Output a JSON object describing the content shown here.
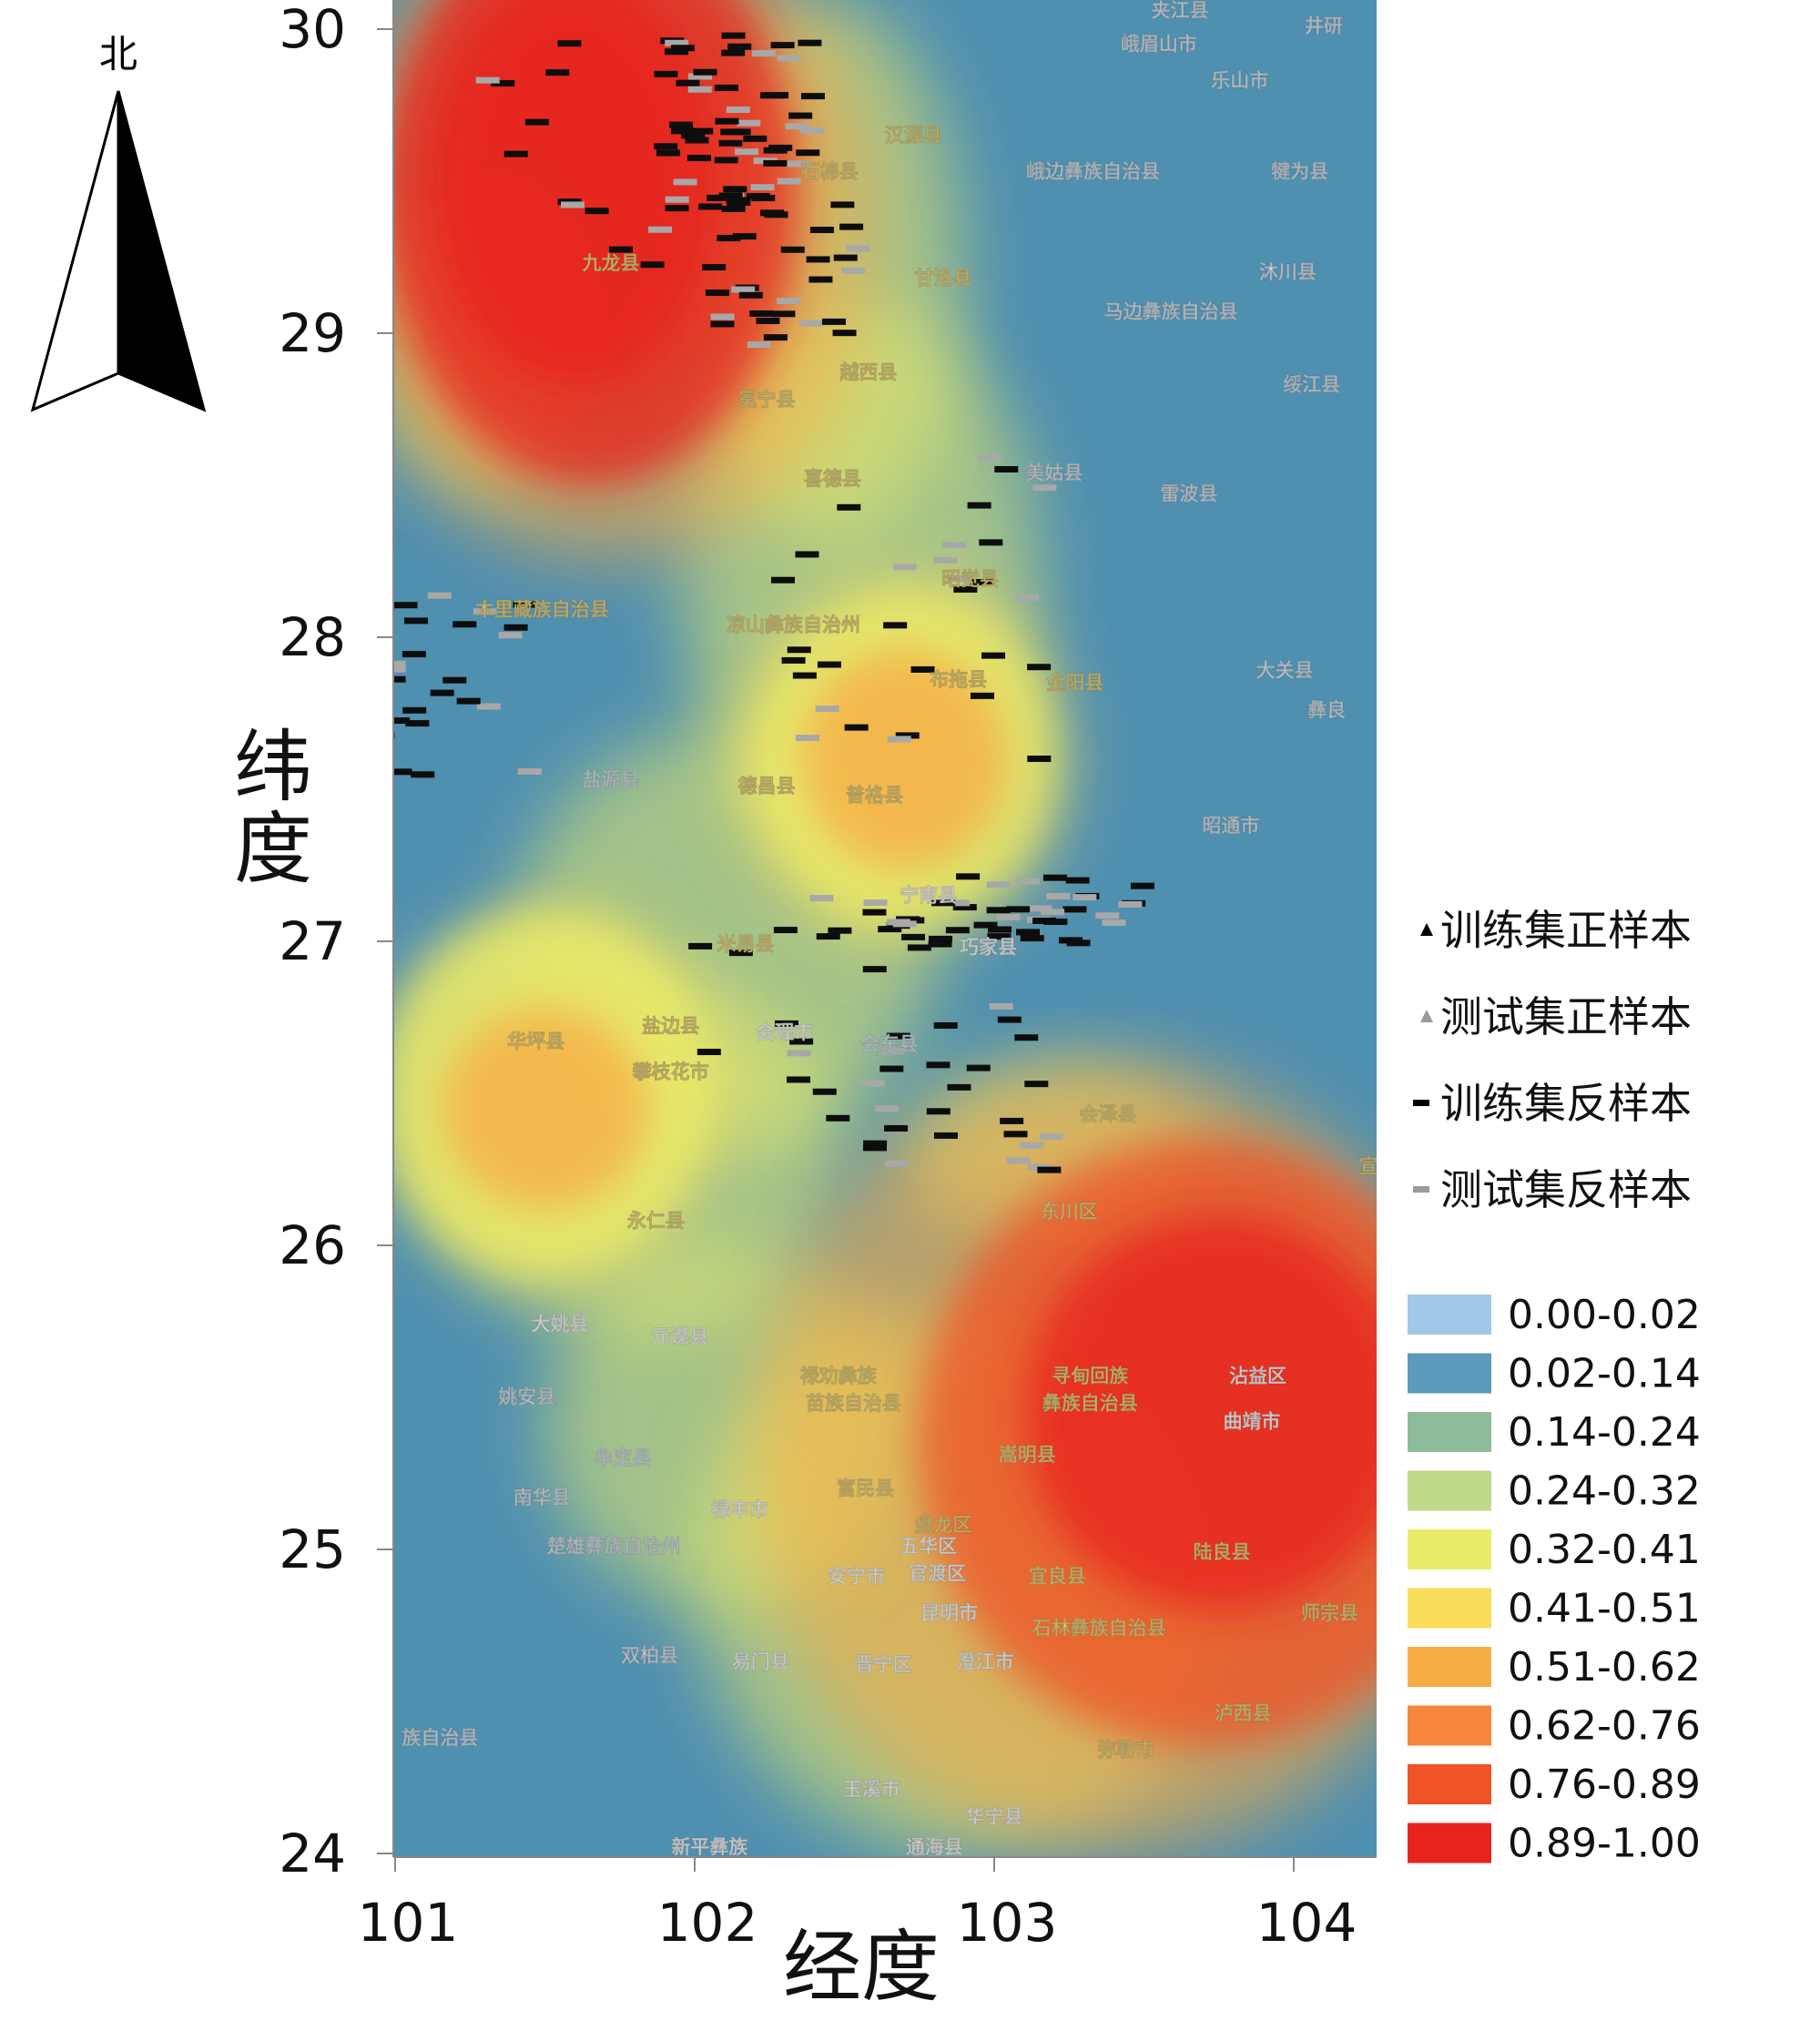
{
  "north_arrow": {
    "label": "北"
  },
  "axes": {
    "xlabel": "经度",
    "ylabel_line1": "纬",
    "ylabel_line2": "度",
    "x_ticks": [
      101,
      102,
      103,
      104
    ],
    "y_ticks": [
      24,
      25,
      26,
      27,
      28,
      29,
      30
    ],
    "xlim": [
      101,
      104.3
    ],
    "ylim": [
      24,
      30.1
    ]
  },
  "legend": {
    "markers": [
      {
        "label": "训练集正样本",
        "symbol": "triangle",
        "color": "#000000"
      },
      {
        "label": "测试集正样本",
        "symbol": "triangle",
        "color": "#9a9a9a"
      },
      {
        "label": "训练集反样本",
        "symbol": "dash",
        "color": "#000000"
      },
      {
        "label": "测试集反样本",
        "symbol": "dash",
        "color": "#9a9a9a"
      }
    ],
    "classes": [
      {
        "label": "0.00-0.02",
        "color": "#9fc9e6"
      },
      {
        "label": "0.02-0.14",
        "color": "#5b9ab8"
      },
      {
        "label": "0.14-0.24",
        "color": "#8cbc9a"
      },
      {
        "label": "0.24-0.32",
        "color": "#bfd98a"
      },
      {
        "label": "0.32-0.41",
        "color": "#e8ec6a"
      },
      {
        "label": "0.41-0.51",
        "color": "#f9dc5a"
      },
      {
        "label": "0.51-0.62",
        "color": "#f8ac45"
      },
      {
        "label": "0.62-0.76",
        "color": "#f5863a"
      },
      {
        "label": "0.76-0.89",
        "color": "#ef5326"
      },
      {
        "label": "0.89-1.00",
        "color": "#e8231d"
      }
    ]
  },
  "susceptibility_zones": [
    {
      "lon": 101.65,
      "lat": 29.45,
      "rlon": 0.7,
      "rlat": 0.95,
      "class": 9
    },
    {
      "lon": 101.6,
      "lat": 29.5,
      "rlon": 0.48,
      "rlat": 0.68,
      "class": 9
    },
    {
      "lon": 103.7,
      "lat": 25.35,
      "rlon": 0.95,
      "rlat": 1.0,
      "class": 8
    },
    {
      "lon": 103.75,
      "lat": 25.45,
      "rlon": 0.65,
      "rlat": 0.65,
      "class": 9
    },
    {
      "lon": 102.7,
      "lat": 27.6,
      "rlon": 0.5,
      "rlat": 0.55,
      "class": 4
    },
    {
      "lon": 102.7,
      "lat": 27.6,
      "rlon": 0.34,
      "rlat": 0.36,
      "class": 6
    },
    {
      "lon": 101.5,
      "lat": 26.5,
      "rlon": 0.55,
      "rlat": 0.6,
      "class": 4
    },
    {
      "lon": 101.5,
      "lat": 26.45,
      "rlon": 0.34,
      "rlat": 0.33,
      "class": 6
    }
  ],
  "place_labels": [
    {
      "name": "夹江县",
      "lon": 103.62,
      "lat": 30.04,
      "kind": "city"
    },
    {
      "name": "峨眉山市",
      "lon": 103.55,
      "lat": 29.93,
      "kind": "city"
    },
    {
      "name": "乐山市",
      "lon": 103.82,
      "lat": 29.81,
      "kind": "city"
    },
    {
      "name": "井研",
      "lon": 104.1,
      "lat": 29.99,
      "kind": "city"
    },
    {
      "name": "汉源县",
      "lon": 102.73,
      "lat": 29.63,
      "kind": "county"
    },
    {
      "name": "石棉县",
      "lon": 102.45,
      "lat": 29.51,
      "kind": "county"
    },
    {
      "name": "峨边彝族自治县",
      "lon": 103.33,
      "lat": 29.51,
      "kind": "city"
    },
    {
      "name": "犍为县",
      "lon": 104.02,
      "lat": 29.51,
      "kind": "city"
    },
    {
      "name": "九龙县",
      "lon": 101.72,
      "lat": 29.21,
      "kind": "county"
    },
    {
      "name": "甘洛县",
      "lon": 102.83,
      "lat": 29.16,
      "kind": "county"
    },
    {
      "name": "沐川县",
      "lon": 103.98,
      "lat": 29.18,
      "kind": "city"
    },
    {
      "name": "马边彝族自治县",
      "lon": 103.59,
      "lat": 29.05,
      "kind": "city"
    },
    {
      "name": "越西县",
      "lon": 102.58,
      "lat": 28.85,
      "kind": "county"
    },
    {
      "name": "冕宁县",
      "lon": 102.24,
      "lat": 28.76,
      "kind": "county"
    },
    {
      "name": "绥江县",
      "lon": 104.06,
      "lat": 28.81,
      "kind": "city"
    },
    {
      "name": "喜德县",
      "lon": 102.46,
      "lat": 28.5,
      "kind": "county"
    },
    {
      "name": "美姑县",
      "lon": 103.2,
      "lat": 28.52,
      "kind": "city"
    },
    {
      "name": "雷波县",
      "lon": 103.65,
      "lat": 28.45,
      "kind": "city"
    },
    {
      "name": "昭觉县",
      "lon": 102.92,
      "lat": 28.17,
      "kind": "county"
    },
    {
      "name": "木里藏族自治县",
      "lon": 101.49,
      "lat": 28.07,
      "kind": "county"
    },
    {
      "name": "凉山彝族自治州",
      "lon": 102.33,
      "lat": 28.02,
      "kind": "county"
    },
    {
      "name": "布拖县",
      "lon": 102.88,
      "lat": 27.84,
      "kind": "county"
    },
    {
      "name": "金阳县",
      "lon": 103.27,
      "lat": 27.83,
      "kind": "county"
    },
    {
      "name": "大关县",
      "lon": 103.97,
      "lat": 27.87,
      "kind": "city"
    },
    {
      "name": "彝良",
      "lon": 104.11,
      "lat": 27.74,
      "kind": "city"
    },
    {
      "name": "盐源县",
      "lon": 101.72,
      "lat": 27.51,
      "kind": "city"
    },
    {
      "name": "德昌县",
      "lon": 102.24,
      "lat": 27.49,
      "kind": "county"
    },
    {
      "name": "普格县",
      "lon": 102.6,
      "lat": 27.46,
      "kind": "county"
    },
    {
      "name": "昭通市",
      "lon": 103.79,
      "lat": 27.36,
      "kind": "city"
    },
    {
      "name": "宁南县",
      "lon": 102.78,
      "lat": 27.13,
      "kind": "white"
    },
    {
      "name": "米易县",
      "lon": 102.17,
      "lat": 26.97,
      "kind": "county"
    },
    {
      "name": "巧家县",
      "lon": 102.98,
      "lat": 26.96,
      "kind": "white"
    },
    {
      "name": "华坪县",
      "lon": 101.47,
      "lat": 26.65,
      "kind": "county"
    },
    {
      "name": "盐边县",
      "lon": 101.92,
      "lat": 26.7,
      "kind": "county"
    },
    {
      "name": "会理市",
      "lon": 102.3,
      "lat": 26.68,
      "kind": "white"
    },
    {
      "name": "攀枝花市",
      "lon": 101.92,
      "lat": 26.55,
      "kind": "county"
    },
    {
      "name": "会东县",
      "lon": 102.65,
      "lat": 26.64,
      "kind": "city"
    },
    {
      "name": "会泽县",
      "lon": 103.38,
      "lat": 26.41,
      "kind": "county"
    },
    {
      "name": "永仁县",
      "lon": 101.87,
      "lat": 26.06,
      "kind": "county"
    },
    {
      "name": "东川区",
      "lon": 103.25,
      "lat": 26.09,
      "kind": "county"
    },
    {
      "name": "大姚县",
      "lon": 101.55,
      "lat": 25.72,
      "kind": "white"
    },
    {
      "name": "元谋县",
      "lon": 101.95,
      "lat": 25.68,
      "kind": "white"
    },
    {
      "name": "禄劝彝族",
      "lon": 102.48,
      "lat": 25.55,
      "kind": "county"
    },
    {
      "name": "苗族自治县",
      "lon": 102.53,
      "lat": 25.46,
      "kind": "county"
    },
    {
      "name": "寻甸回族",
      "lon": 103.32,
      "lat": 25.55,
      "kind": "county"
    },
    {
      "name": "彝族自治县",
      "lon": 103.32,
      "lat": 25.46,
      "kind": "county"
    },
    {
      "name": "沾益区",
      "lon": 103.88,
      "lat": 25.55,
      "kind": "white"
    },
    {
      "name": "曲靖市",
      "lon": 103.86,
      "lat": 25.4,
      "kind": "white"
    },
    {
      "name": "姚安县",
      "lon": 101.44,
      "lat": 25.48,
      "kind": "city"
    },
    {
      "name": "牟定县",
      "lon": 101.76,
      "lat": 25.28,
      "kind": "city"
    },
    {
      "name": "嵩明县",
      "lon": 103.11,
      "lat": 25.29,
      "kind": "county"
    },
    {
      "name": "南华县",
      "lon": 101.49,
      "lat": 25.15,
      "kind": "city"
    },
    {
      "name": "富民县",
      "lon": 102.57,
      "lat": 25.18,
      "kind": "county"
    },
    {
      "name": "禄丰市",
      "lon": 102.15,
      "lat": 25.11,
      "kind": "white"
    },
    {
      "name": "盘龙区",
      "lon": 102.83,
      "lat": 25.06,
      "kind": "county"
    },
    {
      "name": "五华区",
      "lon": 102.78,
      "lat": 24.99,
      "kind": "white"
    },
    {
      "name": "楚雄彝族自治州",
      "lon": 101.73,
      "lat": 24.99,
      "kind": "city"
    },
    {
      "name": "陆良县",
      "lon": 103.76,
      "lat": 24.97,
      "kind": "county"
    },
    {
      "name": "安宁市",
      "lon": 102.54,
      "lat": 24.89,
      "kind": "white"
    },
    {
      "name": "官渡区",
      "lon": 102.81,
      "lat": 24.9,
      "kind": "white"
    },
    {
      "name": "宜良县",
      "lon": 103.21,
      "lat": 24.89,
      "kind": "county"
    },
    {
      "name": "昆明市",
      "lon": 102.85,
      "lat": 24.77,
      "kind": "white"
    },
    {
      "name": "石林彝族自治县",
      "lon": 103.35,
      "lat": 24.72,
      "kind": "county"
    },
    {
      "name": "师宗县",
      "lon": 104.12,
      "lat": 24.77,
      "kind": "county"
    },
    {
      "name": "双柏县",
      "lon": 101.85,
      "lat": 24.63,
      "kind": "city"
    },
    {
      "name": "易门县",
      "lon": 102.22,
      "lat": 24.61,
      "kind": "white"
    },
    {
      "name": "晋宁区",
      "lon": 102.63,
      "lat": 24.6,
      "kind": "white"
    },
    {
      "name": "澄江市",
      "lon": 102.97,
      "lat": 24.61,
      "kind": "white"
    },
    {
      "name": "泸西县",
      "lon": 103.83,
      "lat": 24.44,
      "kind": "county"
    },
    {
      "name": "族自治县",
      "lon": 101.15,
      "lat": 24.36,
      "kind": "city"
    },
    {
      "name": "弥勒市",
      "lon": 103.44,
      "lat": 24.32,
      "kind": "county"
    },
    {
      "name": "玉溪市",
      "lon": 102.59,
      "lat": 24.19,
      "kind": "white"
    },
    {
      "name": "华宁县",
      "lon": 103.0,
      "lat": 24.1,
      "kind": "white"
    },
    {
      "name": "新平彝族",
      "lon": 102.05,
      "lat": 24.0,
      "kind": "white"
    },
    {
      "name": "通海县",
      "lon": 102.8,
      "lat": 24.0,
      "kind": "white"
    },
    {
      "name": "宣",
      "lon": 104.25,
      "lat": 26.24,
      "kind": "county"
    }
  ]
}
